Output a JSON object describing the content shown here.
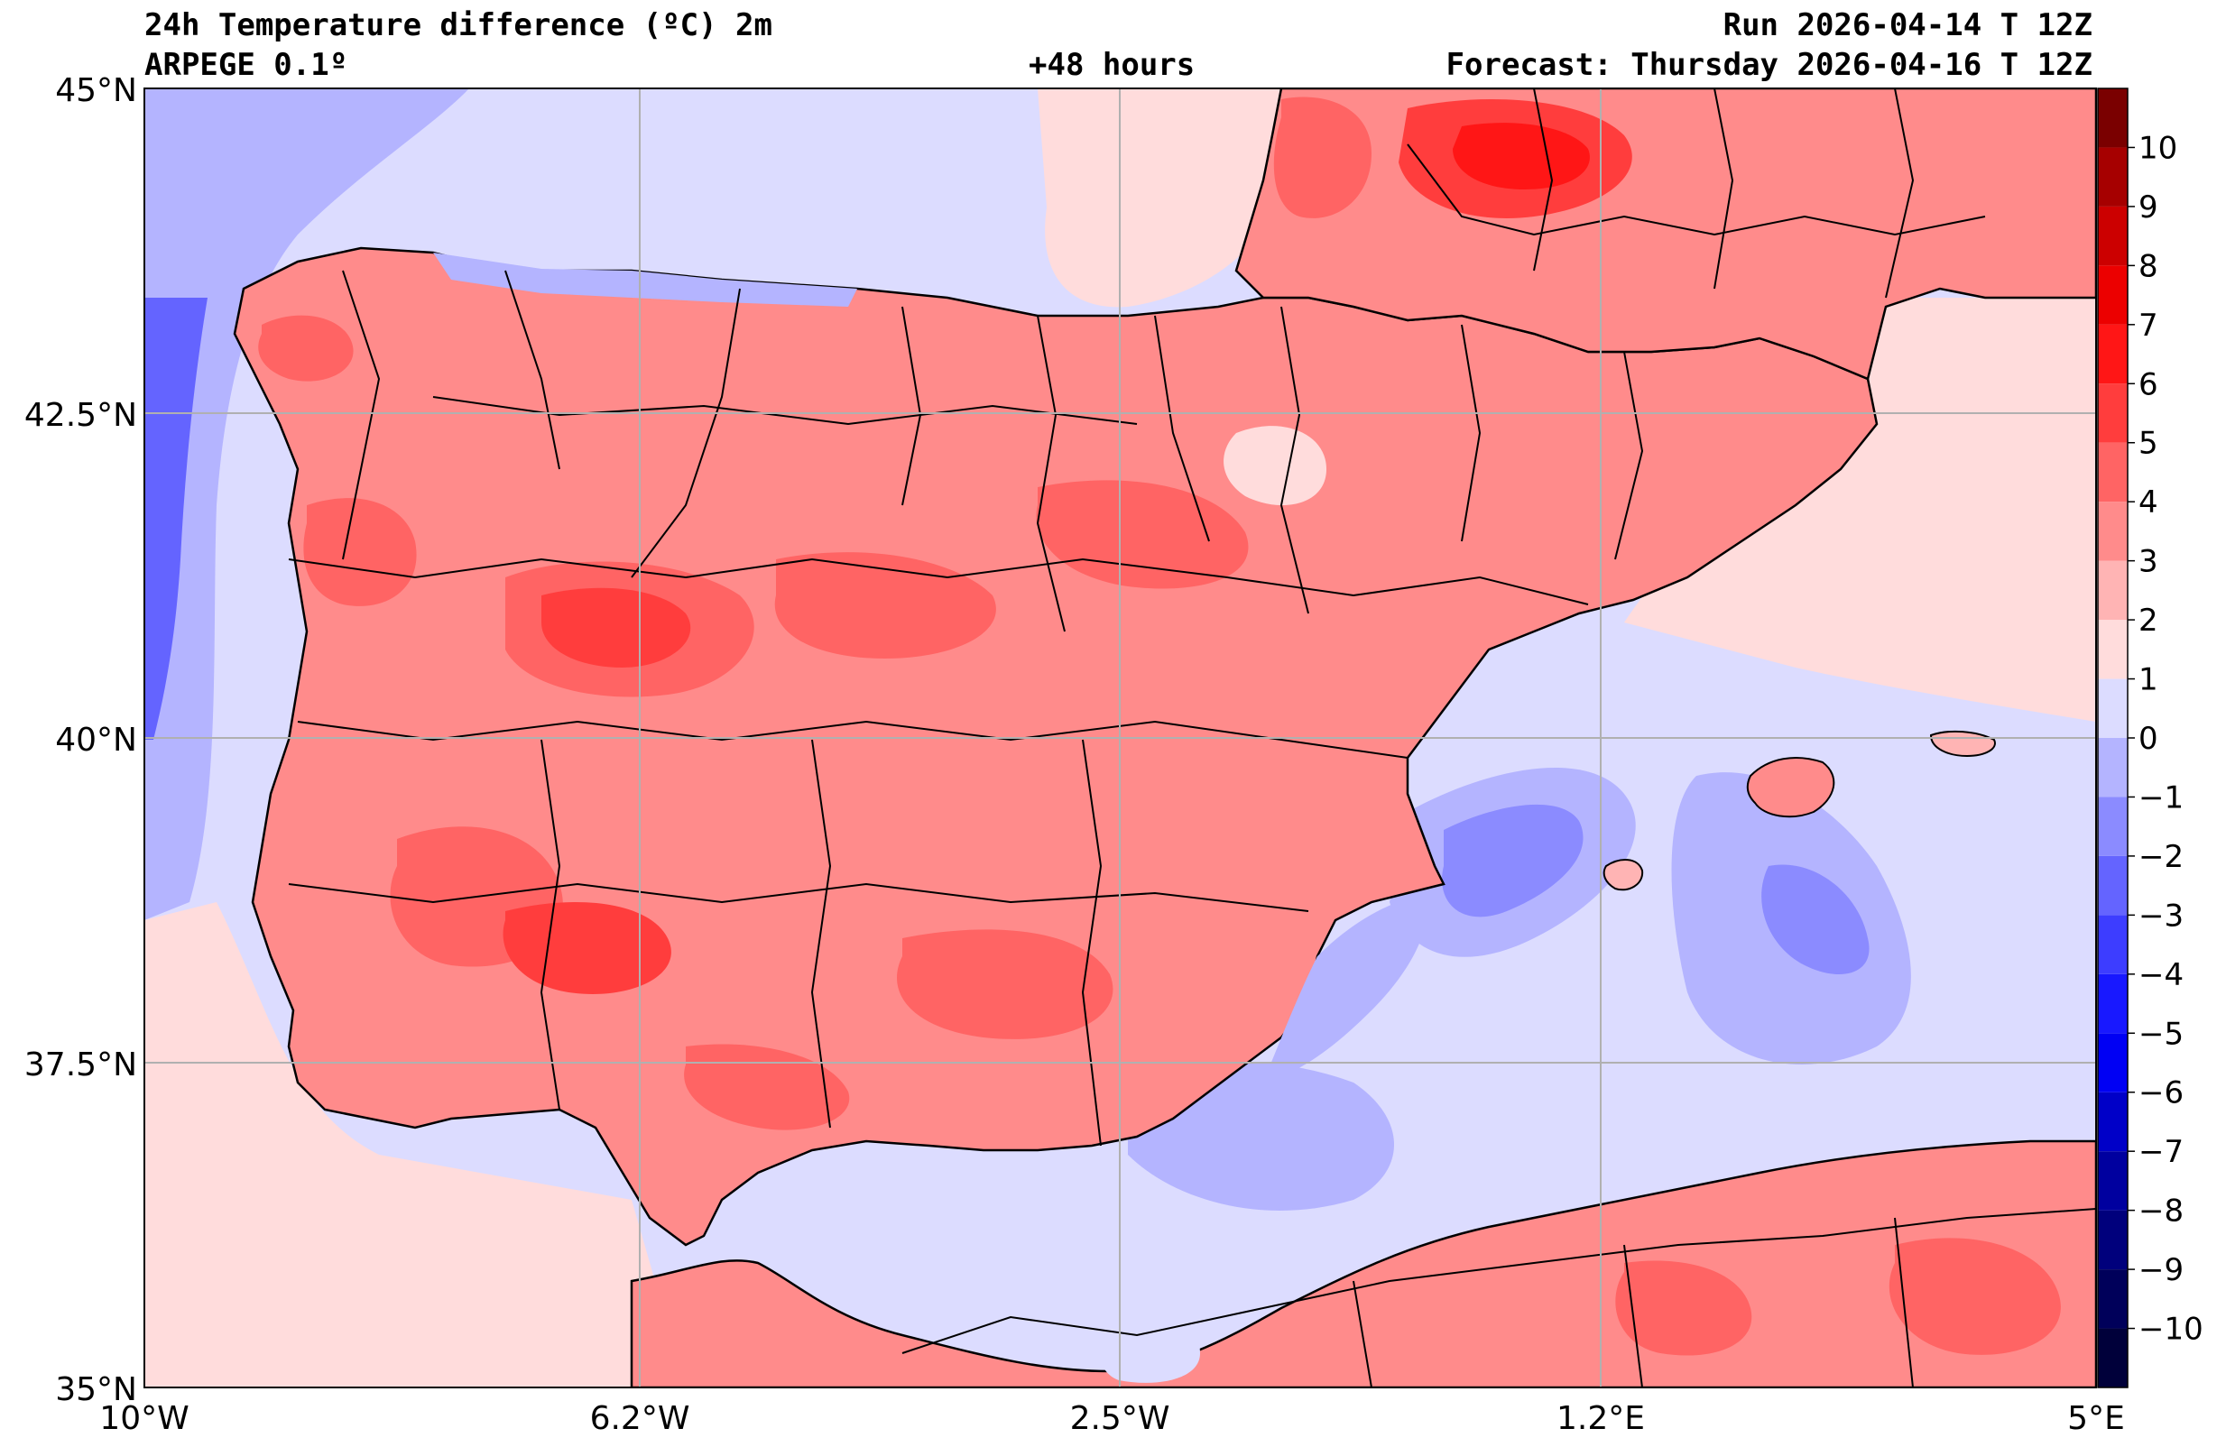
{
  "header": {
    "title_left": "24h Temperature difference (ºC) 2m",
    "model": "ARPEGE 0.1º",
    "lead_time": "+48 hours",
    "run": "Run 2026-04-14 T 12Z",
    "forecast": "Forecast: Thursday 2026-04-16 T 12Z"
  },
  "axes": {
    "lat_labels": [
      "45°N",
      "42.5°N",
      "40°N",
      "37.5°N",
      "35°N"
    ],
    "lon_labels": [
      "10°W",
      "6.2°W",
      "2.5°W",
      "1.2°E",
      "5°E"
    ],
    "lat_range": [
      35,
      45
    ],
    "lon_range": [
      -10,
      5
    ]
  },
  "colorbar": {
    "labels": [
      "10",
      "9",
      "8",
      "7",
      "6",
      "5",
      "4",
      "3",
      "2",
      "1",
      "0",
      "−1",
      "−2",
      "−3",
      "−4",
      "−5",
      "−6",
      "−7",
      "−8",
      "−9",
      "−10"
    ],
    "levels": [
      -11,
      -10,
      -9,
      -8,
      -7,
      -6,
      -5,
      -4,
      -3,
      -2,
      -1,
      0,
      1,
      2,
      3,
      4,
      5,
      6,
      7,
      8,
      9,
      10,
      11
    ],
    "colors": [
      "#00003a",
      "#00005a",
      "#00007c",
      "#00009f",
      "#0000c8",
      "#0000f4",
      "#1818ff",
      "#3d3dff",
      "#6464ff",
      "#8b8bff",
      "#b4b4ff",
      "#dcdcff",
      "#ffdcdc",
      "#ffb4b4",
      "#ff8b8b",
      "#ff6464",
      "#ff3d3d",
      "#ff1616",
      "#ec0000",
      "#cc0000",
      "#a60000",
      "#7a0000"
    ],
    "colors_note": ""
  }
}
